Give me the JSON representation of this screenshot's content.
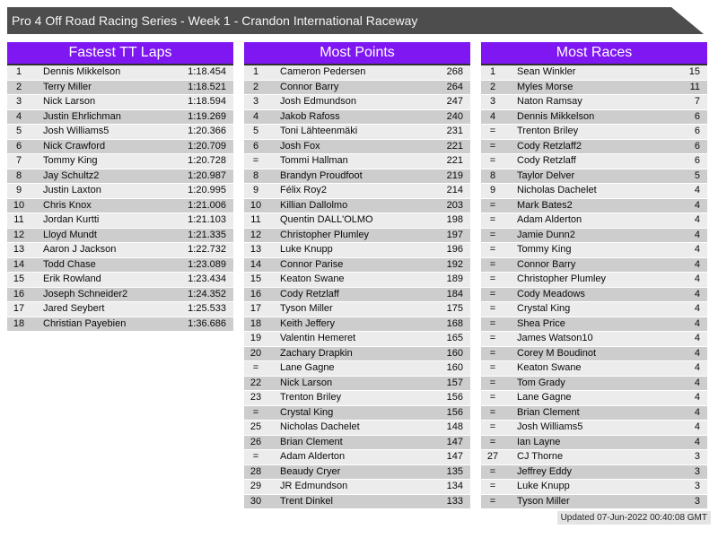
{
  "page": {
    "title": "Pro 4 Off Road Racing Series - Week 1 - Crandon International Raceway",
    "updated": "Updated 07-Jun-2022 00:40:08 GMT"
  },
  "colors": {
    "accent": "#7e17f2",
    "titlebar": "#4d4d4d",
    "row_light": "#ececec",
    "row_dark": "#cdcdcd",
    "footer_bg": "#e4e4e4"
  },
  "tables": [
    {
      "title": "Fastest TT Laps",
      "columns": [
        "rank",
        "driver",
        "lap_time"
      ],
      "rows": [
        [
          "1",
          "Dennis Mikkelson",
          "1:18.454"
        ],
        [
          "2",
          "Terry Miller",
          "1:18.521"
        ],
        [
          "3",
          "Nick Larson",
          "1:18.594"
        ],
        [
          "4",
          "Justin Ehrlichman",
          "1:19.269"
        ],
        [
          "5",
          "Josh Williams5",
          "1:20.366"
        ],
        [
          "6",
          "Nick Crawford",
          "1:20.709"
        ],
        [
          "7",
          "Tommy King",
          "1:20.728"
        ],
        [
          "8",
          "Jay Schultz2",
          "1:20.987"
        ],
        [
          "9",
          "Justin Laxton",
          "1:20.995"
        ],
        [
          "10",
          "Chris Knox",
          "1:21.006"
        ],
        [
          "11",
          "Jordan Kurtti",
          "1:21.103"
        ],
        [
          "12",
          "Lloyd Mundt",
          "1:21.335"
        ],
        [
          "13",
          "Aaron J Jackson",
          "1:22.732"
        ],
        [
          "14",
          "Todd Chase",
          "1:23.089"
        ],
        [
          "15",
          "Erik Rowland",
          "1:23.434"
        ],
        [
          "16",
          "Joseph Schneider2",
          "1:24.352"
        ],
        [
          "17",
          "Jared Seybert",
          "1:25.533"
        ],
        [
          "18",
          "Christian Payebien",
          "1:36.686"
        ]
      ]
    },
    {
      "title": "Most Points",
      "columns": [
        "rank",
        "driver",
        "points"
      ],
      "rows": [
        [
          "1",
          "Cameron Pedersen",
          "268"
        ],
        [
          "2",
          "Connor Barry",
          "264"
        ],
        [
          "3",
          "Josh Edmundson",
          "247"
        ],
        [
          "4",
          "Jakob Rafoss",
          "240"
        ],
        [
          "5",
          "Toni Lähteenmäki",
          "231"
        ],
        [
          "6",
          "Josh Fox",
          "221"
        ],
        [
          "=",
          "Tommi Hallman",
          "221"
        ],
        [
          "8",
          "Brandyn Proudfoot",
          "219"
        ],
        [
          "9",
          "Félix Roy2",
          "214"
        ],
        [
          "10",
          "Killian Dallolmo",
          "203"
        ],
        [
          "11",
          "Quentin DALL'OLMO",
          "198"
        ],
        [
          "12",
          "Christopher Plumley",
          "197"
        ],
        [
          "13",
          "Luke Knupp",
          "196"
        ],
        [
          "14",
          "Connor Parise",
          "192"
        ],
        [
          "15",
          "Keaton Swane",
          "189"
        ],
        [
          "16",
          "Cody Retzlaff",
          "184"
        ],
        [
          "17",
          "Tyson Miller",
          "175"
        ],
        [
          "18",
          "Keith Jeffery",
          "168"
        ],
        [
          "19",
          "Valentin Hemeret",
          "165"
        ],
        [
          "20",
          "Zachary Drapkin",
          "160"
        ],
        [
          "=",
          "Lane Gagne",
          "160"
        ],
        [
          "22",
          "Nick Larson",
          "157"
        ],
        [
          "23",
          "Trenton Briley",
          "156"
        ],
        [
          "=",
          "Crystal King",
          "156"
        ],
        [
          "25",
          "Nicholas Dachelet",
          "148"
        ],
        [
          "26",
          "Brian Clement",
          "147"
        ],
        [
          "=",
          "Adam Alderton",
          "147"
        ],
        [
          "28",
          "Beaudy Cryer",
          "135"
        ],
        [
          "29",
          "JR Edmundson",
          "134"
        ],
        [
          "30",
          "Trent Dinkel",
          "133"
        ]
      ]
    },
    {
      "title": "Most Races",
      "columns": [
        "rank",
        "driver",
        "races"
      ],
      "rows": [
        [
          "1",
          "Sean Winkler",
          "15"
        ],
        [
          "2",
          "Myles Morse",
          "11"
        ],
        [
          "3",
          "Naton Ramsay",
          "7"
        ],
        [
          "4",
          "Dennis Mikkelson",
          "6"
        ],
        [
          "=",
          "Trenton Briley",
          "6"
        ],
        [
          "=",
          "Cody Retzlaff2",
          "6"
        ],
        [
          "=",
          "Cody Retzlaff",
          "6"
        ],
        [
          "8",
          "Taylor Delver",
          "5"
        ],
        [
          "9",
          "Nicholas Dachelet",
          "4"
        ],
        [
          "=",
          "Mark Bates2",
          "4"
        ],
        [
          "=",
          "Adam Alderton",
          "4"
        ],
        [
          "=",
          "Jamie Dunn2",
          "4"
        ],
        [
          "=",
          "Tommy King",
          "4"
        ],
        [
          "=",
          "Connor Barry",
          "4"
        ],
        [
          "=",
          "Christopher Plumley",
          "4"
        ],
        [
          "=",
          "Cody Meadows",
          "4"
        ],
        [
          "=",
          "Crystal King",
          "4"
        ],
        [
          "=",
          "Shea Price",
          "4"
        ],
        [
          "=",
          "James Watson10",
          "4"
        ],
        [
          "=",
          "Corey M Boudinot",
          "4"
        ],
        [
          "=",
          "Keaton Swane",
          "4"
        ],
        [
          "=",
          "Tom Grady",
          "4"
        ],
        [
          "=",
          "Lane Gagne",
          "4"
        ],
        [
          "=",
          "Brian Clement",
          "4"
        ],
        [
          "=",
          "Josh Williams5",
          "4"
        ],
        [
          "=",
          "Ian Layne",
          "4"
        ],
        [
          "27",
          "CJ Thorne",
          "3"
        ],
        [
          "=",
          "Jeffrey Eddy",
          "3"
        ],
        [
          "=",
          "Luke Knupp",
          "3"
        ],
        [
          "=",
          "Tyson Miller",
          "3"
        ]
      ]
    }
  ]
}
